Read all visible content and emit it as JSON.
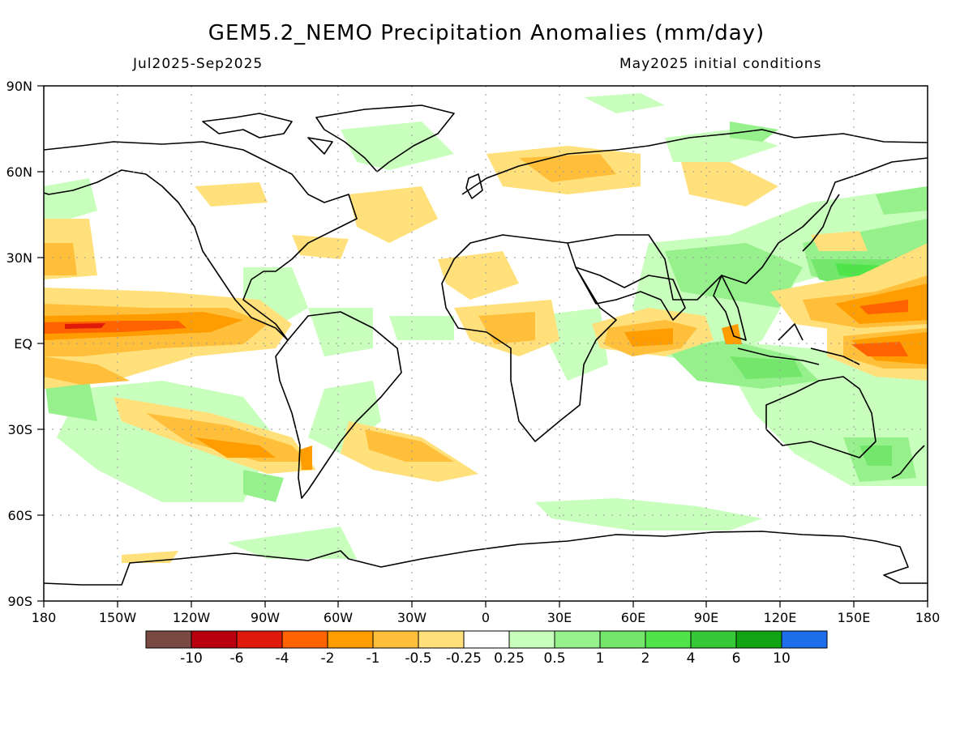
{
  "title": "GEM5.2_NEMO Precipitation Anomalies (mm/day)",
  "period": "Jul2025-Sep2025",
  "init": "May2025 initial conditions",
  "lat_labels": [
    "90N",
    "60N",
    "30N",
    "EQ",
    "30S",
    "60S",
    "90S"
  ],
  "lon_labels": [
    "180",
    "150W",
    "120W",
    "90W",
    "60W",
    "30W",
    "0",
    "30E",
    "60E",
    "90E",
    "120E",
    "150E",
    "180"
  ],
  "colorbar": {
    "colors": [
      "#7a4a42",
      "#b8000f",
      "#e01a0a",
      "#ff6200",
      "#ff9c00",
      "#ffbf3a",
      "#ffe07a",
      "#ffffff",
      "#c8ffbc",
      "#96f08c",
      "#74e66c",
      "#4ee44a",
      "#36c836",
      "#12a312",
      "#1e6eeb"
    ],
    "labels": [
      "-10",
      "-6",
      "-4",
      "-2",
      "-1",
      "-0.5",
      "-0.25",
      "0.25",
      "0.5",
      "1",
      "2",
      "4",
      "6",
      "10"
    ]
  },
  "legend_colors": {
    "dry_light": "#ffe07a",
    "dry_mid": "#ffbf3a",
    "dry": "#ff9c00",
    "dry_strong": "#ff6200",
    "dry_extreme": "#e01a0a",
    "wet_light": "#c8ffbc",
    "wet_mid": "#96f08c",
    "wet": "#74e66c",
    "wet_strong": "#4ee44a"
  }
}
